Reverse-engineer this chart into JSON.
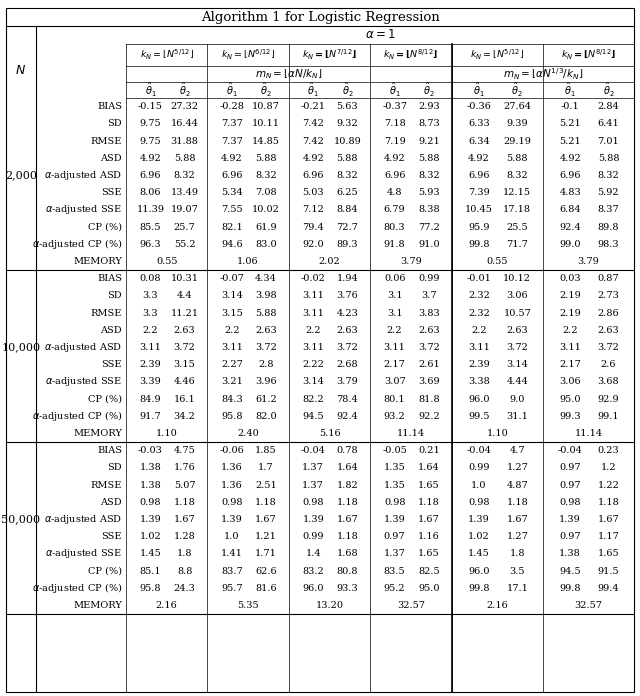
{
  "title": "Algorithm 1 for Logistic Regression",
  "row_labels": [
    "BIAS",
    "SD",
    "RMSE",
    "ASD",
    "α-adjusted ASD",
    "SSE",
    "α-adjusted SSE",
    "CP (%)",
    "\\u03b1-adjusted CP (%)",
    "MEMORY"
  ],
  "N_labels": [
    "2,000",
    "10,000",
    "50,000"
  ],
  "data": {
    "2000": [
      [
        -0.15,
        27.32,
        -0.28,
        10.87,
        -0.21,
        5.63,
        -0.37,
        2.93,
        -0.36,
        27.64,
        -0.1,
        2.84
      ],
      [
        9.75,
        16.44,
        7.37,
        10.11,
        7.42,
        9.32,
        7.18,
        8.73,
        6.33,
        9.39,
        5.21,
        6.41
      ],
      [
        9.75,
        31.88,
        7.37,
        14.85,
        7.42,
        10.89,
        7.19,
        9.21,
        6.34,
        29.19,
        5.21,
        7.01
      ],
      [
        4.92,
        5.88,
        4.92,
        5.88,
        4.92,
        5.88,
        4.92,
        5.88,
        4.92,
        5.88,
        4.92,
        5.88
      ],
      [
        6.96,
        8.32,
        6.96,
        8.32,
        6.96,
        8.32,
        6.96,
        8.32,
        6.96,
        8.32,
        6.96,
        8.32
      ],
      [
        8.06,
        13.49,
        5.34,
        7.08,
        5.03,
        6.25,
        4.8,
        5.93,
        7.39,
        12.15,
        4.83,
        5.92
      ],
      [
        11.39,
        19.07,
        7.55,
        10.02,
        7.12,
        8.84,
        6.79,
        8.38,
        10.45,
        17.18,
        6.84,
        8.37
      ],
      [
        85.5,
        25.7,
        82.1,
        61.9,
        79.4,
        72.7,
        80.3,
        77.2,
        95.9,
        25.5,
        92.4,
        89.8
      ],
      [
        96.3,
        55.2,
        94.6,
        83.0,
        92.0,
        89.3,
        91.8,
        91.0,
        99.8,
        71.7,
        99.0,
        98.3
      ],
      [
        0.55,
        null,
        1.06,
        null,
        2.02,
        null,
        3.79,
        null,
        0.55,
        null,
        3.79,
        null
      ]
    ],
    "10000": [
      [
        0.08,
        10.31,
        -0.07,
        4.34,
        -0.02,
        1.94,
        0.06,
        0.99,
        -0.01,
        10.12,
        0.03,
        0.87
      ],
      [
        3.3,
        4.4,
        3.14,
        3.98,
        3.11,
        3.76,
        3.1,
        3.7,
        2.32,
        3.06,
        2.19,
        2.73
      ],
      [
        3.3,
        11.21,
        3.15,
        5.88,
        3.11,
        4.23,
        3.1,
        3.83,
        2.32,
        10.57,
        2.19,
        2.86
      ],
      [
        2.2,
        2.63,
        2.2,
        2.63,
        2.2,
        2.63,
        2.2,
        2.63,
        2.2,
        2.63,
        2.2,
        2.63
      ],
      [
        3.11,
        3.72,
        3.11,
        3.72,
        3.11,
        3.72,
        3.11,
        3.72,
        3.11,
        3.72,
        3.11,
        3.72
      ],
      [
        2.39,
        3.15,
        2.27,
        2.8,
        2.22,
        2.68,
        2.17,
        2.61,
        2.39,
        3.14,
        2.17,
        2.6
      ],
      [
        3.39,
        4.46,
        3.21,
        3.96,
        3.14,
        3.79,
        3.07,
        3.69,
        3.38,
        4.44,
        3.06,
        3.68
      ],
      [
        84.9,
        16.1,
        84.3,
        61.2,
        82.2,
        78.4,
        80.1,
        81.8,
        96.0,
        9.0,
        95.0,
        92.9
      ],
      [
        91.7,
        34.2,
        95.8,
        82.0,
        94.5,
        92.4,
        93.2,
        92.2,
        99.5,
        31.1,
        99.3,
        99.1
      ],
      [
        1.1,
        null,
        2.4,
        null,
        5.16,
        null,
        11.14,
        null,
        1.1,
        null,
        11.14,
        null
      ]
    ],
    "50000": [
      [
        -0.03,
        4.75,
        -0.06,
        1.85,
        -0.04,
        0.78,
        -0.05,
        0.21,
        -0.04,
        4.7,
        -0.04,
        0.23
      ],
      [
        1.38,
        1.76,
        1.36,
        1.7,
        1.37,
        1.64,
        1.35,
        1.64,
        0.99,
        1.27,
        0.97,
        1.2
      ],
      [
        1.38,
        5.07,
        1.36,
        2.51,
        1.37,
        1.82,
        1.35,
        1.65,
        1.0,
        4.87,
        0.97,
        1.22
      ],
      [
        0.98,
        1.18,
        0.98,
        1.18,
        0.98,
        1.18,
        0.98,
        1.18,
        0.98,
        1.18,
        0.98,
        1.18
      ],
      [
        1.39,
        1.67,
        1.39,
        1.67,
        1.39,
        1.67,
        1.39,
        1.67,
        1.39,
        1.67,
        1.39,
        1.67
      ],
      [
        1.02,
        1.28,
        1.0,
        1.21,
        0.99,
        1.18,
        0.97,
        1.16,
        1.02,
        1.27,
        0.97,
        1.17
      ],
      [
        1.45,
        1.8,
        1.41,
        1.71,
        1.4,
        1.68,
        1.37,
        1.65,
        1.45,
        1.8,
        1.38,
        1.65
      ],
      [
        85.1,
        8.8,
        83.7,
        62.6,
        83.2,
        80.8,
        83.5,
        82.5,
        96.0,
        3.5,
        94.5,
        91.5
      ],
      [
        95.8,
        24.3,
        95.7,
        81.6,
        96.0,
        93.3,
        95.2,
        95.0,
        99.8,
        17.1,
        99.8,
        99.4
      ],
      [
        2.16,
        null,
        5.35,
        null,
        13.2,
        null,
        32.57,
        null,
        2.16,
        null,
        32.57,
        null
      ]
    ]
  }
}
